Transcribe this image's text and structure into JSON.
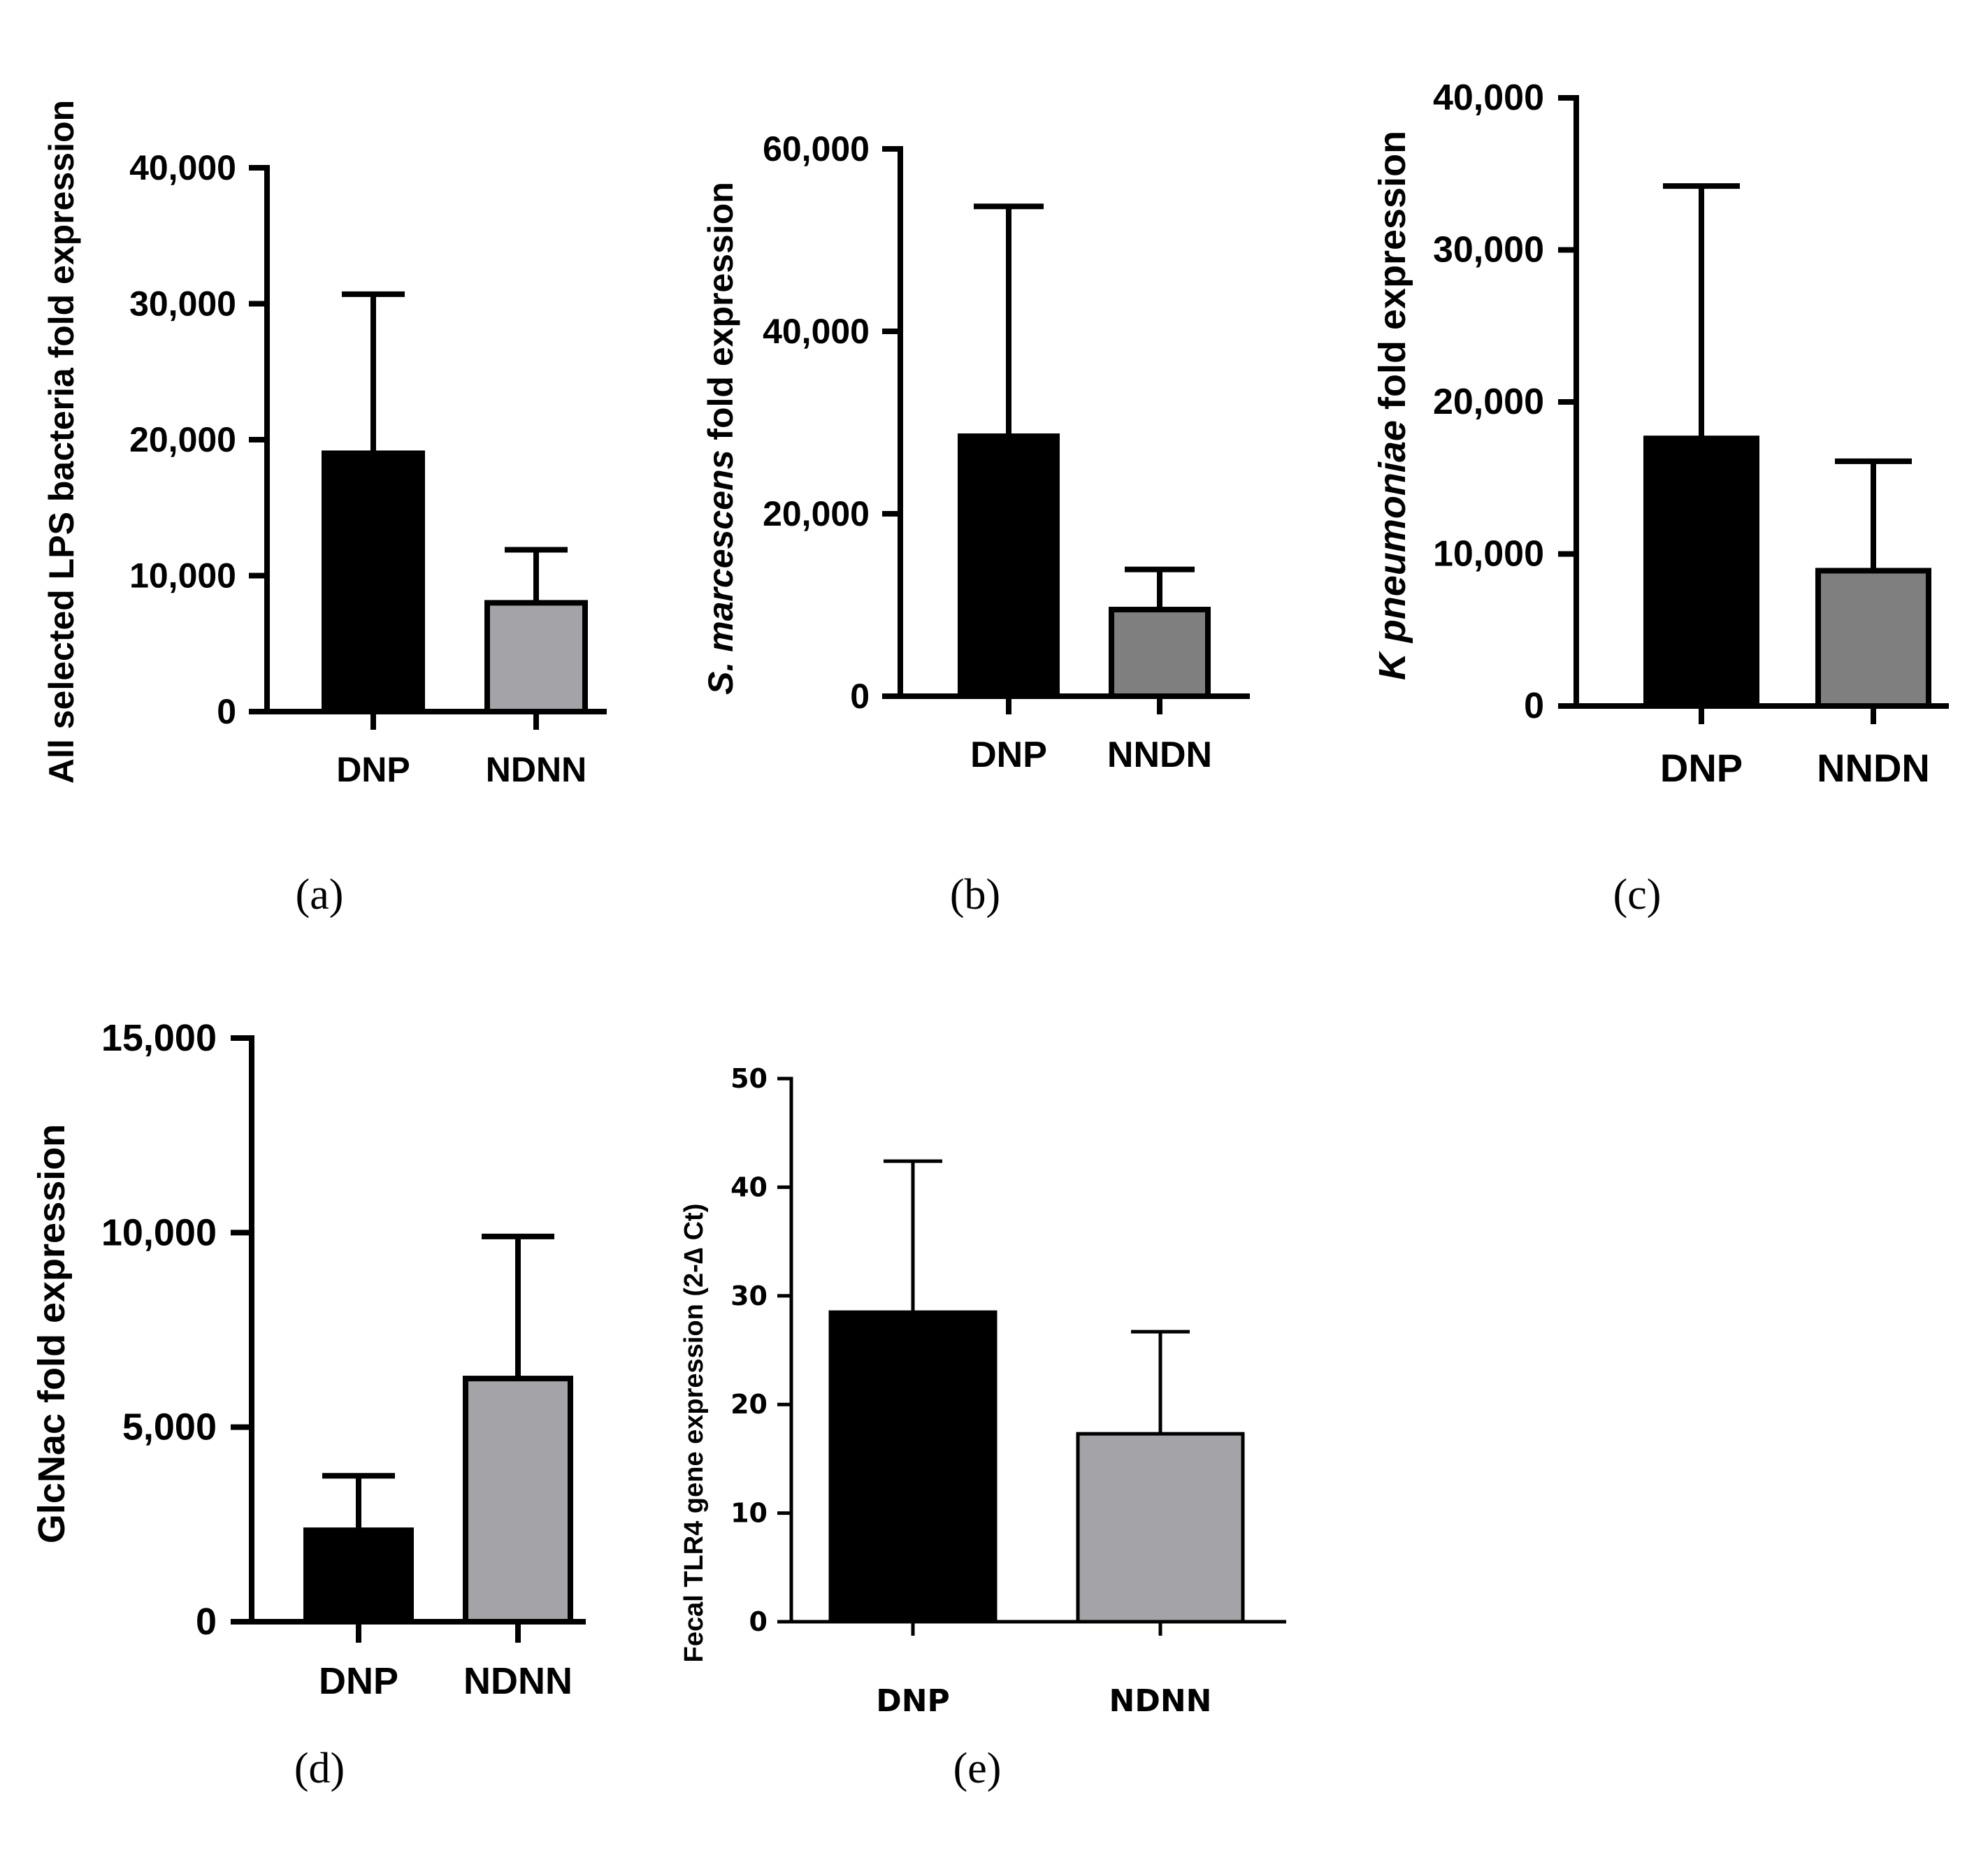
{
  "chart_data": [
    {
      "type": "bar",
      "panel_label": "(a)",
      "title": "",
      "xlabel": "",
      "ylabel": "All selected LPS  bacteria fold expression",
      "ylim": [
        0,
        40000
      ],
      "yticks": [
        "0",
        "10,000",
        "20,000",
        "30,000",
        "40,000"
      ],
      "ytick_values": [
        0,
        10000,
        20000,
        30000,
        40000
      ],
      "categories": [
        "DNP",
        "NDNN"
      ],
      "values": [
        19000,
        8000
      ],
      "errors": [
        11700,
        3900
      ],
      "colors": [
        "#000000",
        "#a4a4a8"
      ]
    },
    {
      "type": "bar",
      "panel_label": "(b)",
      "title": "",
      "xlabel": "",
      "ylabel_italic": "S. marcescens",
      "ylabel_rest": " fold expression",
      "ylim": [
        0,
        60000
      ],
      "yticks": [
        "0",
        "20,000",
        "40,000",
        "60,000"
      ],
      "ytick_values": [
        0,
        20000,
        40000,
        60000
      ],
      "categories": [
        "DNP",
        "NNDN"
      ],
      "values": [
        28500,
        9500
      ],
      "errors": [
        25200,
        4400
      ],
      "colors": [
        "#000000",
        "#7f7f7f"
      ]
    },
    {
      "type": "bar",
      "panel_label": "(c)",
      "title": "",
      "xlabel": "",
      "ylabel_italic": "K pneumoniae",
      "ylabel_rest": " fold expression",
      "ylim": [
        0,
        40000
      ],
      "yticks": [
        "0",
        "10,000",
        "20,000",
        "30,000",
        "40,000"
      ],
      "ytick_values": [
        0,
        10000,
        20000,
        30000,
        40000
      ],
      "categories": [
        "DNP",
        "NNDN"
      ],
      "values": [
        17600,
        8900
      ],
      "errors": [
        16600,
        7200
      ],
      "colors": [
        "#000000",
        "#7f7f7f"
      ]
    },
    {
      "type": "bar",
      "panel_label": "(d)",
      "title": "",
      "xlabel": "",
      "ylabel": "GlcNac fold expression",
      "ylim": [
        0,
        15000
      ],
      "yticks": [
        "0",
        "5,000",
        "10,000",
        "15,000"
      ],
      "ytick_values": [
        0,
        5000,
        10000,
        15000
      ],
      "categories": [
        "DNP",
        "NDNN"
      ],
      "values": [
        2350,
        6250
      ],
      "errors": [
        1400,
        3650
      ],
      "colors": [
        "#000000",
        "#a4a4a8"
      ]
    },
    {
      "type": "bar",
      "panel_label": "(e)",
      "title": "",
      "xlabel": "",
      "ylabel": "Fecal TLR4 gene expression (2-∆ Ct)",
      "ylim": [
        0,
        50
      ],
      "yticks": [
        "0",
        "10",
        "20",
        "30",
        "40",
        "50"
      ],
      "ytick_values": [
        0,
        10,
        20,
        30,
        40,
        50
      ],
      "categories": [
        "DNP",
        "NDNN"
      ],
      "values": [
        28.5,
        17.3
      ],
      "errors": [
        13.9,
        9.4
      ],
      "colors": [
        "#000000",
        "#a4a4a8"
      ]
    }
  ]
}
